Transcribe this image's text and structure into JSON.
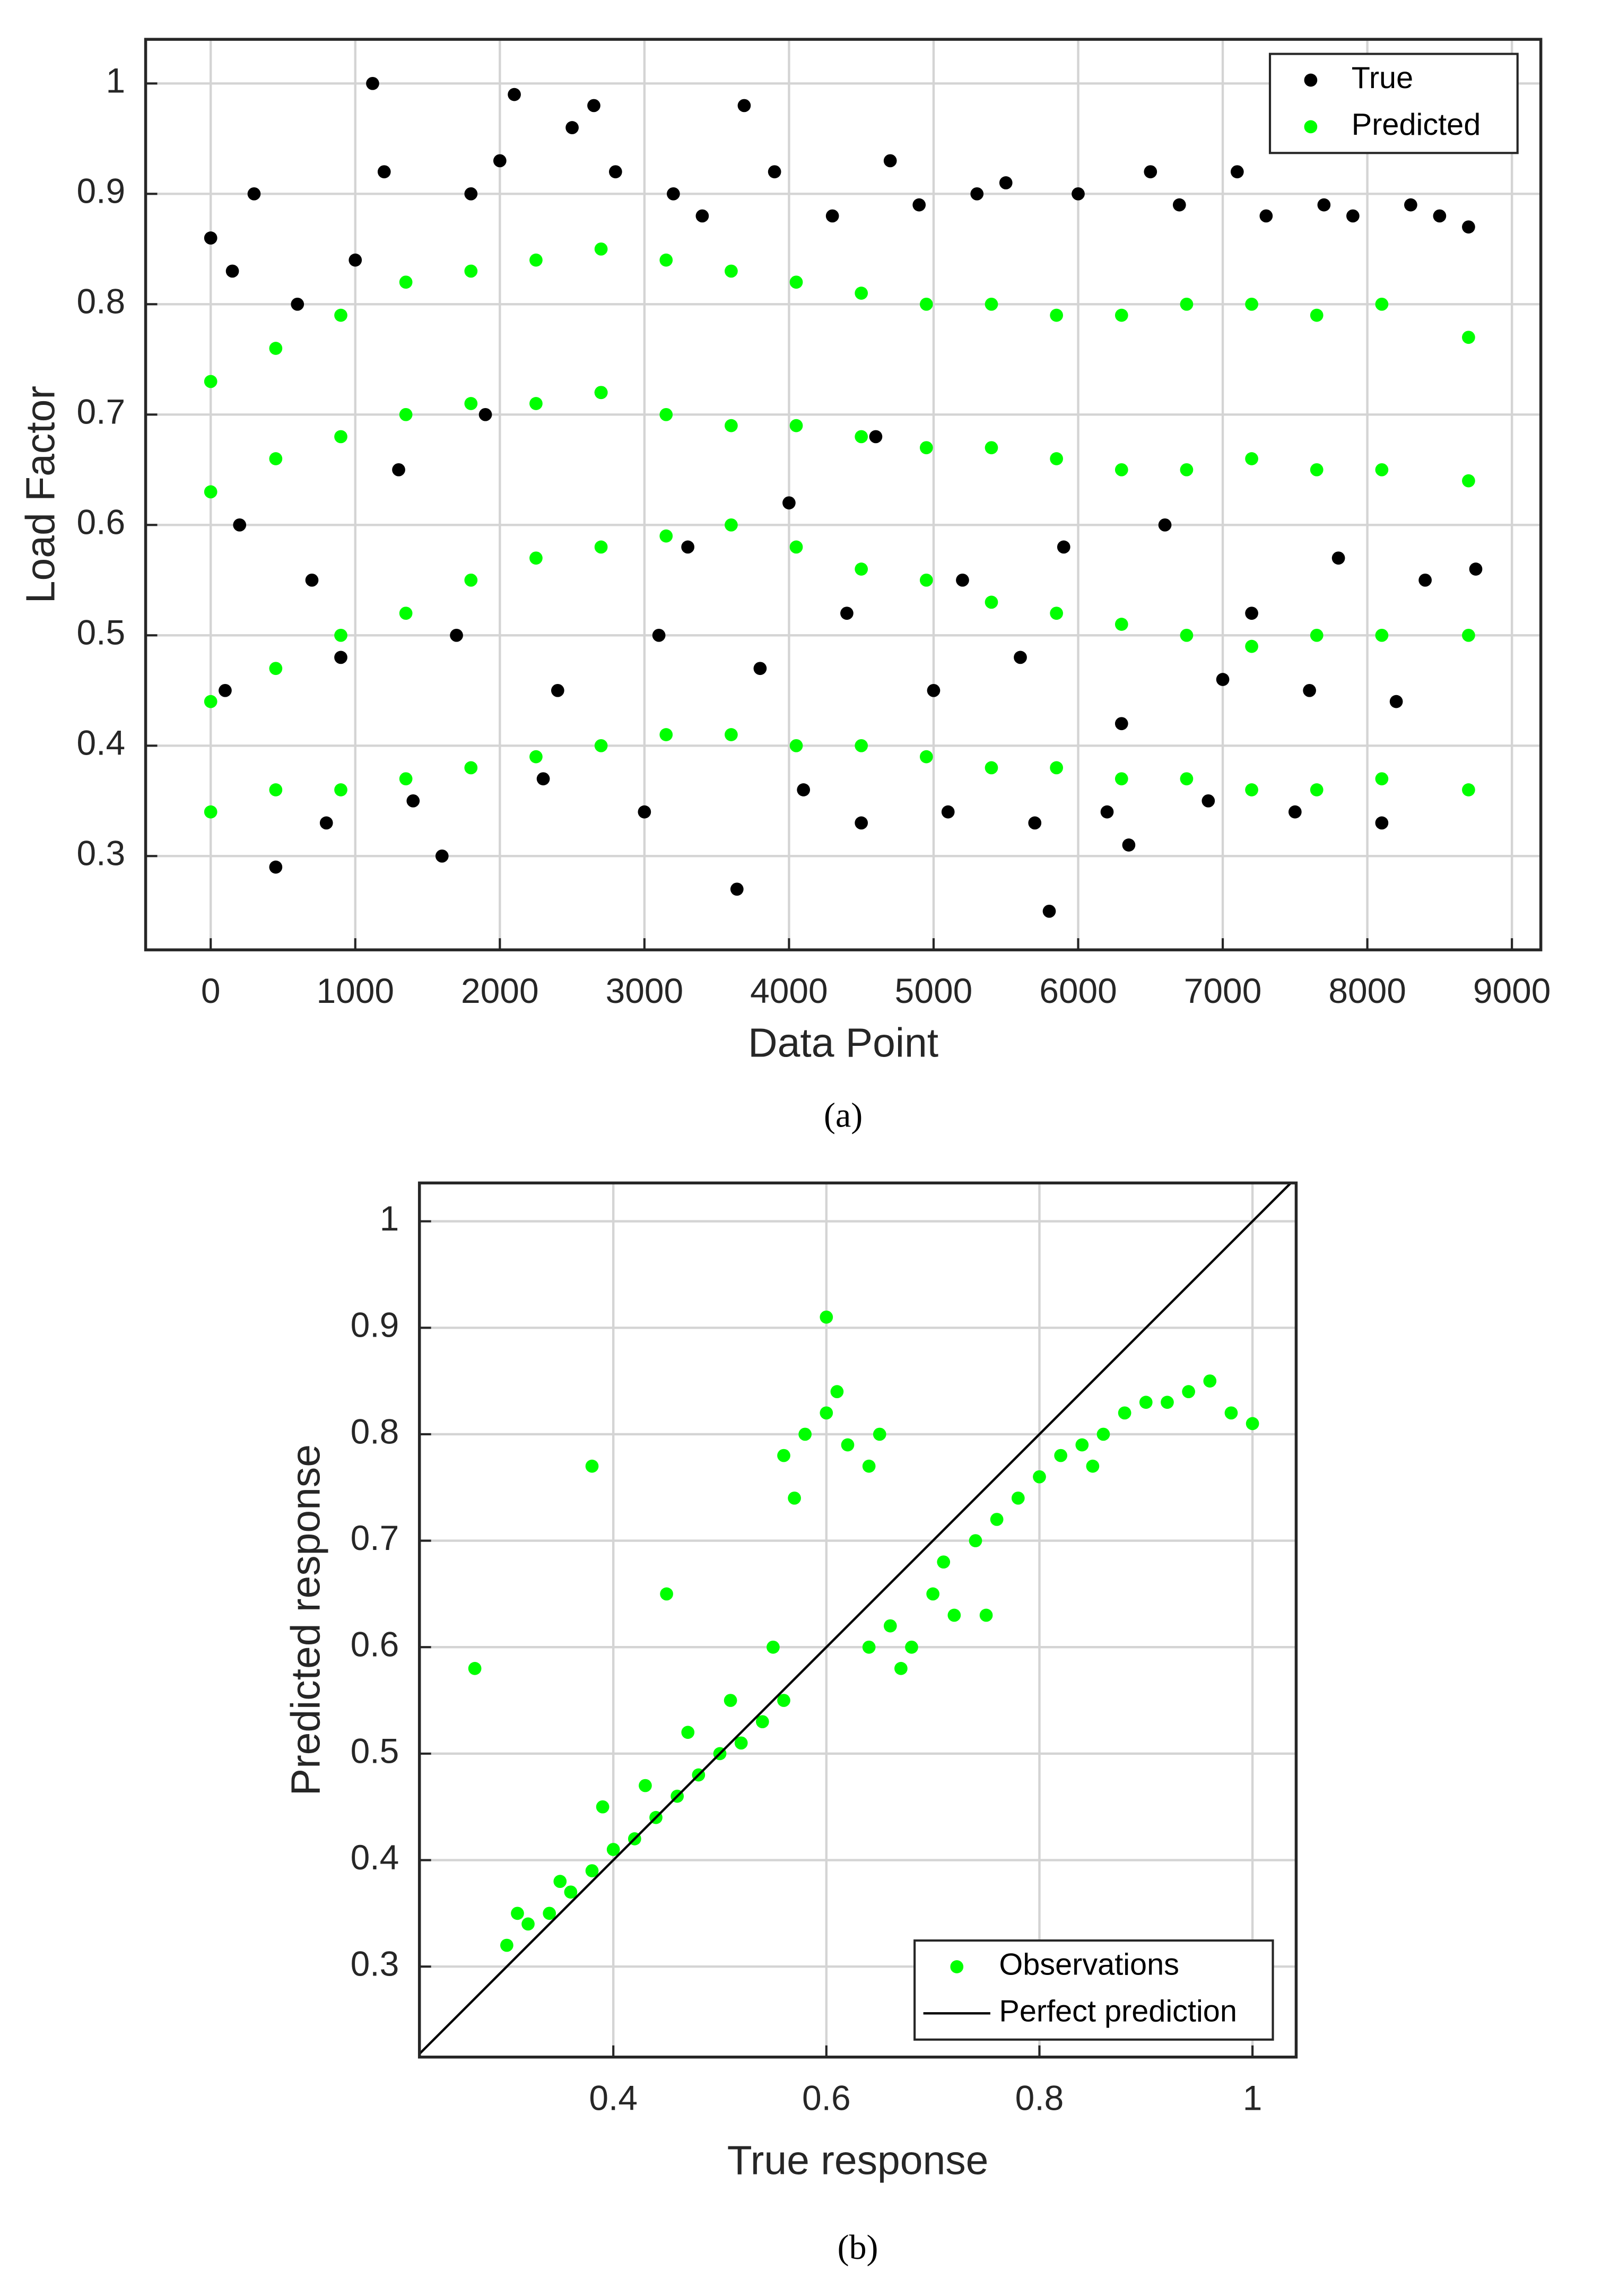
{
  "chart_data": [
    {
      "type": "scatter",
      "caption": "(a)",
      "x_label": "Data Point",
      "y_label": "Load Factor",
      "xlim": [
        -450,
        9200
      ],
      "ylim": [
        0.215,
        1.04
      ],
      "xticks": [
        0,
        1000,
        2000,
        3000,
        4000,
        5000,
        6000,
        7000,
        8000,
        9000
      ],
      "yticks": [
        0.3,
        0.4,
        0.5,
        0.6,
        0.7,
        0.8,
        0.9,
        1
      ],
      "grid": true,
      "legend": "upper right",
      "series": [
        {
          "name": "True",
          "color": "#000000",
          "mode": "markers",
          "x": [
            0,
            150,
            300,
            450,
            600,
            800,
            1000,
            1120,
            1200,
            1400,
            1600,
            1800,
            2000,
            2100,
            2300,
            2500,
            2650,
            2800,
            3000,
            3200,
            3400,
            3640,
            3690,
            3900,
            4100,
            4300,
            4500,
            4700,
            4900,
            5100,
            5300,
            5500,
            5700,
            5800,
            6000,
            6200,
            6350,
            6500,
            6700,
            6900,
            7100,
            7300,
            7500,
            7700,
            7900,
            8100,
            8300,
            8500,
            8700,
            200,
            700,
            1300,
            1900,
            2700,
            3300,
            4000,
            4600,
            5200,
            5900,
            6600,
            7200,
            7800,
            8400,
            100,
            900,
            1700,
            2400,
            3100,
            3800,
            4400,
            5000,
            5600,
            6300,
            7000,
            7600,
            8200,
            8750
          ],
          "values": [
            0.86,
            0.83,
            0.9,
            0.29,
            0.8,
            0.33,
            0.84,
            1.0,
            0.92,
            0.35,
            0.3,
            0.9,
            0.93,
            0.99,
            0.37,
            0.96,
            0.98,
            0.92,
            0.34,
            0.9,
            0.88,
            0.27,
            0.98,
            0.92,
            0.36,
            0.88,
            0.33,
            0.93,
            0.89,
            0.34,
            0.9,
            0.91,
            0.33,
            0.25,
            0.9,
            0.34,
            0.31,
            0.92,
            0.89,
            0.35,
            0.92,
            0.88,
            0.34,
            0.89,
            0.88,
            0.33,
            0.89,
            0.88,
            0.87,
            0.6,
            0.55,
            0.65,
            0.7,
            0.72,
            0.58,
            0.62,
            0.68,
            0.55,
            0.58,
            0.6,
            0.52,
            0.57,
            0.55,
            0.45,
            0.48,
            0.5,
            0.45,
            0.5,
            0.47,
            0.52,
            0.45,
            0.48,
            0.42,
            0.46,
            0.45,
            0.44,
            0.56
          ]
        },
        {
          "name": "Predicted",
          "color": "#00ff00",
          "mode": "markers",
          "x": [
            0,
            450,
            900,
            1350,
            1800,
            2250,
            2700,
            3150,
            3600,
            4050,
            4500,
            4950,
            5400,
            5850,
            6300,
            6750,
            7200,
            7650,
            8100,
            8700,
            0,
            450,
            900,
            1350,
            1800,
            2250,
            2700,
            3150,
            3600,
            4050,
            4500,
            4950,
            5400,
            5850,
            6300,
            6750,
            7200,
            7650,
            8100,
            8700,
            0,
            450,
            900,
            1350,
            1800,
            2250,
            2700,
            3150,
            3600,
            4050,
            4500,
            4950,
            5400,
            5850,
            6300,
            6750,
            7200,
            7650,
            8100,
            8700,
            0,
            450,
            900,
            1350,
            1800,
            2250,
            2700,
            3150,
            3600,
            4050,
            4500,
            4950,
            5400,
            5850,
            6300,
            6750,
            7200,
            7650,
            8100,
            8700
          ],
          "values": [
            0.73,
            0.76,
            0.79,
            0.82,
            0.83,
            0.84,
            0.85,
            0.84,
            0.83,
            0.82,
            0.81,
            0.8,
            0.8,
            0.79,
            0.79,
            0.8,
            0.8,
            0.79,
            0.8,
            0.77,
            0.63,
            0.66,
            0.68,
            0.7,
            0.71,
            0.71,
            0.72,
            0.7,
            0.69,
            0.69,
            0.68,
            0.67,
            0.67,
            0.66,
            0.65,
            0.65,
            0.66,
            0.65,
            0.65,
            0.64,
            0.44,
            0.47,
            0.5,
            0.52,
            0.55,
            0.57,
            0.58,
            0.59,
            0.6,
            0.58,
            0.56,
            0.55,
            0.53,
            0.52,
            0.51,
            0.5,
            0.49,
            0.5,
            0.5,
            0.5,
            0.34,
            0.36,
            0.36,
            0.37,
            0.38,
            0.39,
            0.4,
            0.41,
            0.41,
            0.4,
            0.4,
            0.39,
            0.38,
            0.38,
            0.37,
            0.37,
            0.36,
            0.36,
            0.37,
            0.36
          ]
        }
      ]
    },
    {
      "type": "scatter",
      "caption": "(b)",
      "x_label": "True response",
      "y_label": "Predicted response",
      "xlim": [
        0.218,
        1.041
      ],
      "ylim": [
        0.215,
        1.036
      ],
      "xticks": [
        0.4,
        0.6,
        0.8,
        1
      ],
      "yticks": [
        0.3,
        0.4,
        0.5,
        0.6,
        0.7,
        0.8,
        0.9,
        1
      ],
      "grid": true,
      "legend": "lower right",
      "series": [
        {
          "name": "Observations",
          "color": "#00ff00",
          "mode": "markers",
          "x": [
            0.3,
            0.32,
            0.34,
            0.36,
            0.38,
            0.4,
            0.42,
            0.44,
            0.46,
            0.48,
            0.5,
            0.52,
            0.54,
            0.56,
            0.31,
            0.35,
            0.39,
            0.43,
            0.47,
            0.51,
            0.55,
            0.56,
            0.58,
            0.6,
            0.62,
            0.64,
            0.57,
            0.61,
            0.65,
            0.64,
            0.66,
            0.68,
            0.7,
            0.72,
            0.67,
            0.71,
            0.74,
            0.76,
            0.78,
            0.8,
            0.82,
            0.84,
            0.86,
            0.88,
            0.9,
            0.92,
            0.94,
            0.96,
            0.98,
            1.0,
            0.27,
            0.38,
            0.45,
            0.6,
            0.75,
            0.85
          ],
          "values": [
            0.32,
            0.34,
            0.35,
            0.37,
            0.39,
            0.41,
            0.42,
            0.44,
            0.46,
            0.48,
            0.5,
            0.51,
            0.53,
            0.55,
            0.35,
            0.38,
            0.45,
            0.47,
            0.52,
            0.55,
            0.6,
            0.78,
            0.8,
            0.82,
            0.79,
            0.77,
            0.74,
            0.84,
            0.8,
            0.6,
            0.62,
            0.6,
            0.65,
            0.63,
            0.58,
            0.68,
            0.7,
            0.72,
            0.74,
            0.76,
            0.78,
            0.79,
            0.8,
            0.82,
            0.83,
            0.83,
            0.84,
            0.85,
            0.82,
            0.81,
            0.58,
            0.77,
            0.65,
            0.91,
            0.63,
            0.77
          ]
        },
        {
          "name": "Perfect prediction",
          "color": "#000000",
          "mode": "line",
          "x": [
            0.218,
            1.036
          ],
          "values": [
            0.218,
            1.036
          ]
        }
      ]
    }
  ]
}
